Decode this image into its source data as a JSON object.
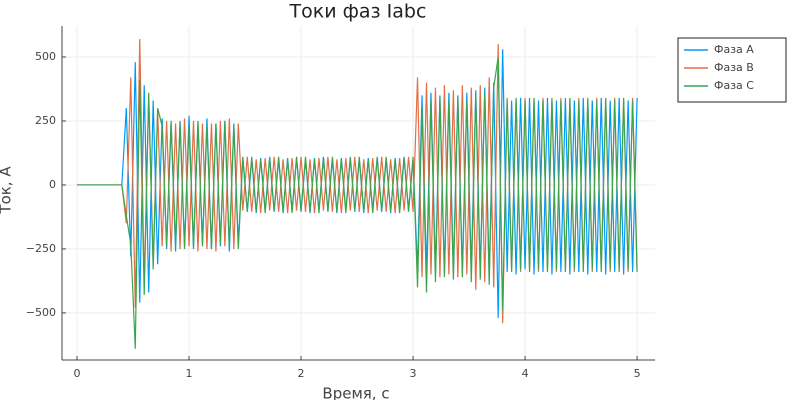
{
  "chart_data": {
    "type": "line",
    "title": "Токи фаз Iabc",
    "x_label": "Время, с",
    "y_label": "Ток, А",
    "x": [
      0,
      0.04,
      0.08,
      0.12,
      0.16,
      0.2,
      0.24,
      0.28,
      0.32,
      0.36,
      0.4,
      0.44,
      0.48,
      0.52,
      0.56,
      0.6,
      0.64,
      0.68,
      0.72,
      0.76,
      0.8,
      0.84,
      0.88,
      0.92,
      0.96,
      1,
      1.04,
      1.08,
      1.12,
      1.16,
      1.2,
      1.24,
      1.28,
      1.32,
      1.36,
      1.4,
      1.44,
      1.48,
      1.52,
      1.56,
      1.6,
      1.64,
      1.68,
      1.72,
      1.76,
      1.8,
      1.84,
      1.88,
      1.92,
      1.96,
      2,
      2.04,
      2.08,
      2.12,
      2.16,
      2.2,
      2.24,
      2.28,
      2.32,
      2.36,
      2.4,
      2.44,
      2.48,
      2.52,
      2.56,
      2.6,
      2.64,
      2.68,
      2.72,
      2.76,
      2.8,
      2.84,
      2.88,
      2.92,
      2.96,
      3,
      3.04,
      3.08,
      3.12,
      3.16,
      3.2,
      3.24,
      3.28,
      3.32,
      3.36,
      3.4,
      3.44,
      3.48,
      3.52,
      3.56,
      3.6,
      3.64,
      3.68,
      3.72,
      3.76,
      3.8,
      3.84,
      3.88,
      3.92,
      3.96,
      4,
      4.04,
      4.08,
      4.12,
      4.16,
      4.2,
      4.24,
      4.28,
      4.32,
      4.36,
      4.4,
      4.44,
      4.48,
      4.52,
      4.56,
      4.6,
      4.64,
      4.68,
      4.72,
      4.76,
      4.8,
      4.84,
      4.88,
      4.92,
      4.96,
      5
    ],
    "series": [
      {
        "name": "Фаза A",
        "color": "#009af9",
        "values": [
          0,
          0,
          0,
          0,
          0,
          0,
          0,
          0,
          0,
          0,
          0,
          300,
          -280,
          480,
          -460,
          390,
          -420,
          330,
          -310,
          260,
          -250,
          240,
          -260,
          250,
          -240,
          270,
          -250,
          240,
          -230,
          260,
          -250,
          240,
          -240,
          250,
          -260,
          240,
          -230,
          110,
          -105,
          100,
          -110,
          105,
          -100,
          110,
          -105,
          100,
          -110,
          105,
          -100,
          110,
          -105,
          100,
          -110,
          105,
          -100,
          110,
          -105,
          100,
          -110,
          105,
          -100,
          110,
          -105,
          100,
          -110,
          105,
          -100,
          110,
          -105,
          100,
          -110,
          105,
          -100,
          110,
          -105,
          100,
          -330,
          350,
          -340,
          360,
          -330,
          350,
          -340,
          360,
          -330,
          350,
          -340,
          360,
          -330,
          370,
          -340,
          380,
          -350,
          400,
          -520,
          530,
          -340,
          330,
          -350,
          340,
          -330,
          340,
          -350,
          330,
          -340,
          340,
          -350,
          330,
          -340,
          340,
          -350,
          330,
          -340,
          340,
          -350,
          330,
          -340,
          340,
          -350,
          330,
          -340,
          340,
          -350,
          330,
          -340,
          340
        ]
      },
      {
        "name": "Фаза B",
        "color": "#e26f46",
        "values": [
          0,
          0,
          0,
          0,
          0,
          0,
          0,
          0,
          0,
          0,
          0,
          -150,
          420,
          -480,
          570,
          -380,
          340,
          -300,
          290,
          -240,
          250,
          -260,
          240,
          -250,
          260,
          -240,
          250,
          -260,
          240,
          -250,
          240,
          -260,
          250,
          -240,
          260,
          -250,
          240,
          -100,
          110,
          -105,
          100,
          -110,
          105,
          -100,
          110,
          -105,
          100,
          -110,
          105,
          -100,
          110,
          -105,
          100,
          -110,
          105,
          -100,
          110,
          -105,
          100,
          -110,
          105,
          -100,
          110,
          -105,
          100,
          -110,
          105,
          -100,
          110,
          -105,
          100,
          -110,
          105,
          -100,
          110,
          -105,
          420,
          -360,
          400,
          -350,
          380,
          -360,
          390,
          -350,
          370,
          -360,
          390,
          -350,
          380,
          -410,
          390,
          -380,
          420,
          -400,
          550,
          -540,
          340,
          -330,
          330,
          -340,
          340,
          -330,
          330,
          -340,
          340,
          -330,
          330,
          -340,
          340,
          -330,
          330,
          -340,
          340,
          -330,
          330,
          -340,
          340,
          -330,
          330,
          -340,
          340,
          -330,
          330,
          -340,
          340,
          -330
        ]
      },
      {
        "name": "Фаза C",
        "color": "#3da44d",
        "values": [
          0,
          0,
          0,
          0,
          0,
          0,
          0,
          0,
          0,
          0,
          0,
          -120,
          -230,
          -640,
          410,
          -430,
          360,
          -330,
          300,
          230,
          -240,
          250,
          -230,
          240,
          -250,
          230,
          -240,
          250,
          -240,
          230,
          -250,
          240,
          -230,
          250,
          -240,
          230,
          -250,
          105,
          -100,
          110,
          -105,
          100,
          -110,
          105,
          -100,
          110,
          -105,
          100,
          -110,
          105,
          -100,
          110,
          -105,
          100,
          -110,
          105,
          -100,
          110,
          -105,
          100,
          -110,
          105,
          -100,
          110,
          -105,
          100,
          -110,
          105,
          -100,
          110,
          -105,
          100,
          -110,
          105,
          -100,
          110,
          -400,
          300,
          -420,
          330,
          -380,
          340,
          -360,
          330,
          -370,
          340,
          -360,
          330,
          -380,
          350,
          -370,
          360,
          -390,
          380,
          500,
          -490,
          330,
          -340,
          340,
          -330,
          330,
          -340,
          340,
          -330,
          330,
          -340,
          340,
          -330,
          330,
          -340,
          340,
          -330,
          330,
          -340,
          340,
          -330,
          330,
          -340,
          340,
          -330,
          330,
          -340,
          340,
          -330,
          330,
          -340
        ]
      }
    ],
    "xlim": [
      -0.134,
      5.16
    ],
    "ylim": [
      -684,
      621
    ],
    "xticks": [
      0,
      1,
      2,
      3,
      4,
      5
    ],
    "yticks": [
      {
        "value": -500,
        "label": "−500"
      },
      {
        "value": -250,
        "label": "−250"
      },
      0,
      250,
      500
    ],
    "grid": true,
    "legend": "outside-top-right"
  }
}
